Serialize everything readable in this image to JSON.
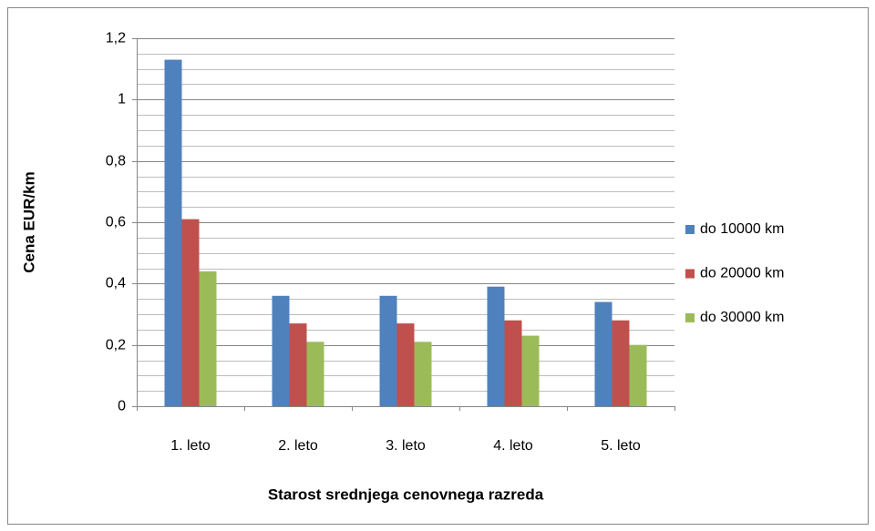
{
  "chart_data": {
    "type": "bar",
    "x_label": "Starost srednjega cenovnega razreda",
    "y_label": "Cena EUR/km",
    "categories": [
      "1. leto",
      "2. leto",
      "3. leto",
      "4. leto",
      "5. leto"
    ],
    "series": [
      {
        "name": "do 10000 km",
        "color": "#4f81bd",
        "values": [
          1.13,
          0.36,
          0.36,
          0.39,
          0.34
        ]
      },
      {
        "name": "do 20000 km",
        "color": "#c0504d",
        "values": [
          0.61,
          0.27,
          0.27,
          0.28,
          0.28
        ]
      },
      {
        "name": "do 30000 km",
        "color": "#9bbb59",
        "values": [
          0.44,
          0.21,
          0.21,
          0.23,
          0.2
        ]
      }
    ],
    "ylim": [
      0,
      1.2
    ],
    "yticks": [
      0,
      {
        "value": 0.2,
        "label": "0,2"
      },
      {
        "value": 0.4,
        "label": "0,4"
      },
      {
        "value": 0.6,
        "label": "0,6"
      },
      {
        "value": 0.8,
        "label": "0,8"
      },
      1,
      {
        "value": 1.2,
        "label": "1,2"
      }
    ],
    "minor_yticks": [
      0.05,
      0.1,
      0.15,
      0.25,
      0.3,
      0.35,
      0.45,
      0.5,
      0.55,
      0.65,
      0.7,
      0.75,
      0.85,
      0.9,
      0.95,
      1.05,
      1.1,
      1.15
    ],
    "grid": true,
    "legend": "right"
  }
}
